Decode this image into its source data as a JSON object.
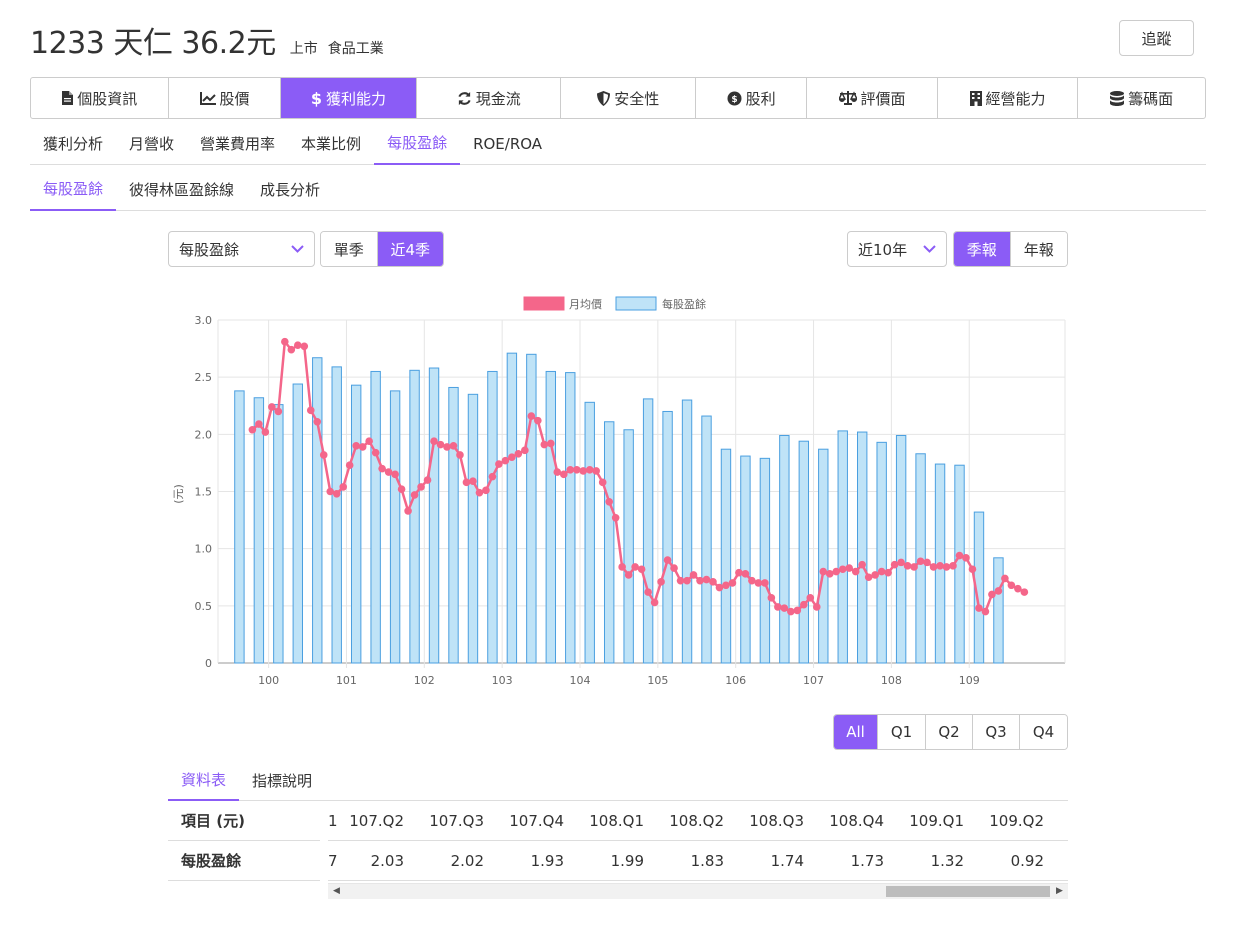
{
  "header": {
    "title": "1233 天仁 36.2元",
    "market": "上市",
    "industry": "食品工業",
    "follow_label": "追蹤"
  },
  "main_tabs": [
    {
      "label": "個股資訊",
      "icon": "document-icon"
    },
    {
      "label": "股價",
      "icon": "line-chart-icon"
    },
    {
      "label": "獲利能力",
      "icon": "dollar-icon"
    },
    {
      "label": "現金流",
      "icon": "refresh-icon"
    },
    {
      "label": "安全性",
      "icon": "shield-icon"
    },
    {
      "label": "股利",
      "icon": "money-bag-icon"
    },
    {
      "label": "評價面",
      "icon": "balance-scale-icon"
    },
    {
      "label": "經營能力",
      "icon": "building-icon"
    },
    {
      "label": "籌碼面",
      "icon": "database-icon"
    }
  ],
  "sub_tabs": [
    "獲利分析",
    "月營收",
    "營業費用率",
    "本業比例",
    "每股盈餘",
    "ROE/ROA"
  ],
  "sub2_tabs": [
    "每股盈餘",
    "彼得林區盈餘線",
    "成長分析"
  ],
  "controls": {
    "metric_select": "每股盈餘",
    "period_buttons": [
      "單季",
      "近4季"
    ],
    "range_select": "近10年",
    "report_buttons": [
      "季報",
      "年報"
    ],
    "quarter_filter": [
      "All",
      "Q1",
      "Q2",
      "Q3",
      "Q4"
    ]
  },
  "colors": {
    "accent": "#8b5cf6",
    "line": "#f4668a",
    "bar_fill": "#bfe3f7",
    "bar_stroke": "#4a9fe0"
  },
  "chart_data": {
    "type": "bar+line",
    "legend": [
      "月均價",
      "每股盈餘"
    ],
    "ylabel": "(元)",
    "ylim": [
      0,
      3.0
    ],
    "yticks": [
      0,
      0.5,
      1.0,
      1.5,
      2.0,
      2.5,
      3.0
    ],
    "ytick_labels": [
      "0",
      "0.5",
      "1.0",
      "1.5",
      "2.0",
      "2.5",
      "3.0"
    ],
    "xtick_labels": [
      "100",
      "101",
      "102",
      "103",
      "104",
      "105",
      "106",
      "107",
      "108",
      "109"
    ],
    "x_range": [
      99.35,
      110.23
    ],
    "bar_series": {
      "name": "每股盈餘",
      "x": [
        99.625,
        99.875,
        100.125,
        100.375,
        100.625,
        100.875,
        101.125,
        101.375,
        101.625,
        101.875,
        102.125,
        102.375,
        102.625,
        102.875,
        103.125,
        103.375,
        103.625,
        103.875,
        104.125,
        104.375,
        104.625,
        104.875,
        105.125,
        105.375,
        105.625,
        105.875,
        106.125,
        106.375,
        106.625,
        106.875,
        107.125,
        107.375,
        107.625,
        107.875,
        108.125,
        108.375,
        108.625,
        108.875,
        109.125,
        109.375
      ],
      "values": [
        2.38,
        2.32,
        2.26,
        2.44,
        2.67,
        2.59,
        2.43,
        2.55,
        2.38,
        2.56,
        2.58,
        2.41,
        2.35,
        2.55,
        2.71,
        2.7,
        2.55,
        2.54,
        2.28,
        2.11,
        2.04,
        2.31,
        2.2,
        2.3,
        2.16,
        1.87,
        1.81,
        1.79,
        1.99,
        1.94,
        1.87,
        2.03,
        2.02,
        1.93,
        1.99,
        1.83,
        1.74,
        1.73,
        1.32,
        0.92
      ]
    },
    "line_series": {
      "name": "月均價",
      "x_start": 99.7917,
      "x_step": 0.08333,
      "values": [
        2.04,
        2.09,
        2.02,
        2.24,
        2.2,
        2.81,
        2.74,
        2.78,
        2.77,
        2.21,
        2.11,
        1.82,
        1.5,
        1.48,
        1.54,
        1.73,
        1.9,
        1.89,
        1.94,
        1.84,
        1.7,
        1.67,
        1.65,
        1.52,
        1.33,
        1.47,
        1.54,
        1.6,
        1.94,
        1.91,
        1.89,
        1.9,
        1.82,
        1.58,
        1.59,
        1.49,
        1.51,
        1.63,
        1.74,
        1.77,
        1.8,
        1.83,
        1.86,
        2.16,
        2.12,
        1.91,
        1.92,
        1.67,
        1.65,
        1.69,
        1.69,
        1.68,
        1.69,
        1.68,
        1.58,
        1.41,
        1.27,
        0.84,
        0.77,
        0.84,
        0.82,
        0.62,
        0.53,
        0.71,
        0.9,
        0.83,
        0.72,
        0.72,
        0.77,
        0.72,
        0.73,
        0.71,
        0.66,
        0.68,
        0.7,
        0.79,
        0.78,
        0.72,
        0.7,
        0.7,
        0.57,
        0.49,
        0.48,
        0.45,
        0.46,
        0.51,
        0.57,
        0.49,
        0.8,
        0.78,
        0.8,
        0.82,
        0.83,
        0.8,
        0.86,
        0.75,
        0.77,
        0.8,
        0.79,
        0.86,
        0.88,
        0.85,
        0.84,
        0.89,
        0.88,
        0.84,
        0.85,
        0.84,
        0.85,
        0.94,
        0.92,
        0.82,
        0.48,
        0.45,
        0.6,
        0.63,
        0.74,
        0.68,
        0.65,
        0.62
      ]
    }
  },
  "data_tabs": [
    "資料表",
    "指標說明"
  ],
  "table": {
    "row_labels": [
      "項目 (元)",
      "每股盈餘"
    ],
    "partial_first": [
      "1",
      "7"
    ],
    "headers": [
      "107.Q2",
      "107.Q3",
      "107.Q4",
      "108.Q1",
      "108.Q2",
      "108.Q3",
      "108.Q4",
      "109.Q1",
      "109.Q2"
    ],
    "values": [
      "2.03",
      "2.02",
      "1.93",
      "1.99",
      "1.83",
      "1.74",
      "1.73",
      "1.32",
      "0.92"
    ]
  }
}
